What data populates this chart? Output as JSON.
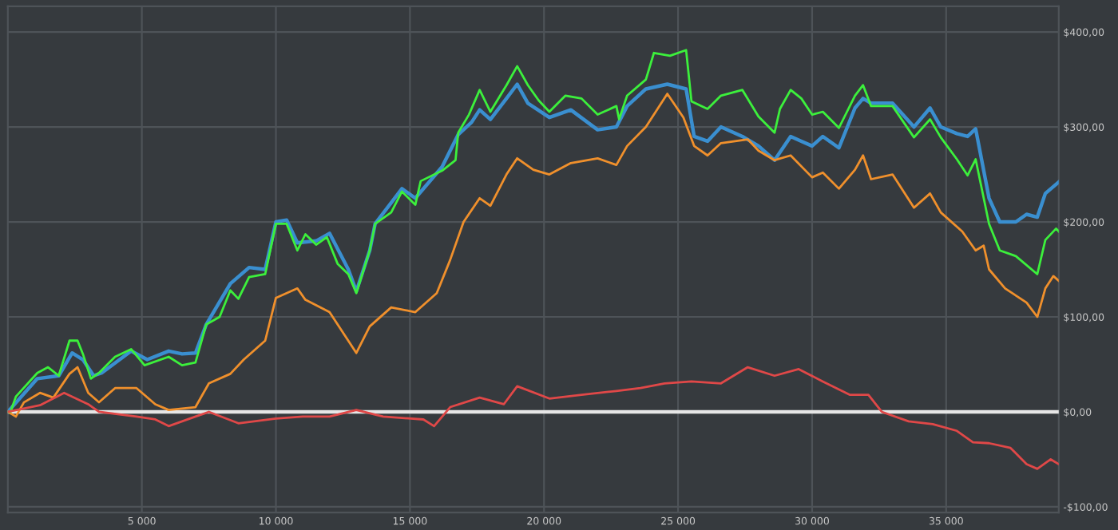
{
  "chart_data": {
    "type": "line",
    "xlim": [
      0,
      39200
    ],
    "ylim": [
      -106,
      427
    ],
    "xticks": [
      {
        "value": 5000,
        "label": "5 000"
      },
      {
        "value": 10000,
        "label": "10 000"
      },
      {
        "value": 15000,
        "label": "15 000"
      },
      {
        "value": 20000,
        "label": "20 000"
      },
      {
        "value": 25000,
        "label": "25 000"
      },
      {
        "value": 30000,
        "label": "30 000"
      },
      {
        "value": 35000,
        "label": "35 000"
      }
    ],
    "yticks": [
      {
        "value": -100,
        "label": "-$100,00"
      },
      {
        "value": 0,
        "label": "$0,00"
      },
      {
        "value": 100,
        "label": "$100,00"
      },
      {
        "value": 200,
        "label": "$200,00"
      },
      {
        "value": 300,
        "label": "$300,00"
      },
      {
        "value": 400,
        "label": "$400,00"
      }
    ],
    "grid": true,
    "marker": "none",
    "line_style": "solid",
    "ref_lines": [
      {
        "axis": "y",
        "value": 0,
        "label": null,
        "color": "#e6e6e6"
      }
    ],
    "series": [
      {
        "color": "#3a8fd0",
        "x": [
          0,
          1100,
          1900,
          2400,
          2800,
          3200,
          3500,
          4600,
          5200,
          6000,
          6500,
          7000,
          7400,
          8300,
          9000,
          9600,
          10000,
          10400,
          10800,
          11500,
          12000,
          12700,
          13000,
          13500,
          13700,
          14700,
          15200,
          16200,
          16800,
          17300,
          17600,
          18000,
          18600,
          19000,
          19400,
          20200,
          21000,
          22000,
          22700,
          23100,
          23800,
          24600,
          25300,
          25600,
          26100,
          26600,
          27400,
          28000,
          28600,
          29200,
          29600,
          30000,
          30400,
          31000,
          31600,
          31900,
          32200,
          33000,
          33800,
          34400,
          34800,
          35400,
          35800,
          36100,
          36600,
          37000,
          37600,
          38000,
          38400,
          38700,
          39200
        ],
        "values": [
          0,
          35,
          38,
          62,
          55,
          38,
          41,
          64,
          55,
          64,
          61,
          62,
          92,
          135,
          152,
          150,
          200,
          202,
          178,
          180,
          188,
          150,
          127,
          170,
          198,
          235,
          225,
          258,
          292,
          305,
          318,
          308,
          330,
          345,
          325,
          310,
          318,
          297,
          300,
          322,
          340,
          345,
          340,
          290,
          285,
          300,
          290,
          280,
          265,
          290,
          285,
          280,
          290,
          278,
          320,
          330,
          325,
          325,
          300,
          320,
          300,
          293,
          290,
          298,
          225,
          200,
          200,
          208,
          205,
          230,
          242
        ]
      },
      {
        "color": "#f0902c",
        "x": [
          0,
          300,
          600,
          1200,
          1700,
          2300,
          2600,
          3000,
          3400,
          4000,
          4800,
          5500,
          6000,
          7000,
          7500,
          8300,
          8800,
          9600,
          10000,
          10800,
          11100,
          12000,
          13000,
          13500,
          14300,
          15200,
          16000,
          16500,
          17000,
          17600,
          18000,
          18600,
          19000,
          19600,
          20200,
          21000,
          22000,
          22700,
          23100,
          23800,
          24600,
          25200,
          25600,
          26100,
          26600,
          27600,
          28000,
          28600,
          29200,
          30000,
          30400,
          31000,
          31600,
          31900,
          32200,
          33000,
          33800,
          34400,
          34800,
          35600,
          36100,
          36400,
          36600,
          37200,
          38000,
          38400,
          38700,
          39000,
          39200
        ],
        "values": [
          0,
          -5,
          10,
          20,
          15,
          40,
          47,
          20,
          10,
          25,
          25,
          8,
          2,
          5,
          30,
          40,
          55,
          75,
          120,
          130,
          118,
          105,
          62,
          90,
          110,
          105,
          125,
          160,
          200,
          225,
          217,
          250,
          267,
          255,
          250,
          262,
          267,
          260,
          280,
          300,
          335,
          310,
          280,
          270,
          283,
          287,
          275,
          265,
          270,
          247,
          252,
          235,
          255,
          270,
          245,
          250,
          215,
          230,
          210,
          190,
          170,
          175,
          150,
          130,
          115,
          100,
          130,
          143,
          138
        ]
      },
      {
        "color": "#3cf03c",
        "x": [
          0,
          100,
          300,
          1100,
          1500,
          1900,
          2300,
          2600,
          2800,
          3100,
          3400,
          4000,
          4600,
          5100,
          6000,
          6500,
          7000,
          7400,
          7900,
          8300,
          8600,
          9000,
          9600,
          10000,
          10400,
          10800,
          11100,
          11500,
          11900,
          12300,
          12700,
          13000,
          13500,
          13700,
          14300,
          14700,
          15200,
          15400,
          16200,
          16700,
          16800,
          17200,
          17600,
          18000,
          18600,
          19000,
          19400,
          19800,
          20200,
          20800,
          21400,
          22000,
          22700,
          22800,
          23100,
          23800,
          24100,
          24700,
          25300,
          25500,
          26100,
          26600,
          27400,
          28000,
          28600,
          28800,
          29200,
          29600,
          30000,
          30400,
          31000,
          31600,
          31900,
          32200,
          33000,
          33800,
          34400,
          34800,
          35400,
          35800,
          36100,
          36600,
          37000,
          37600,
          38400,
          38700,
          39100,
          39200
        ],
        "values": [
          0,
          0,
          16,
          41,
          47,
          38,
          75,
          75,
          61,
          35,
          41,
          58,
          66,
          49,
          58,
          49,
          52,
          92,
          100,
          128,
          119,
          142,
          145,
          198,
          198,
          170,
          187,
          176,
          184,
          156,
          145,
          125,
          170,
          198,
          210,
          232,
          218,
          243,
          254,
          265,
          294,
          313,
          339,
          316,
          344,
          364,
          344,
          328,
          316,
          333,
          330,
          313,
          322,
          308,
          333,
          350,
          378,
          375,
          381,
          327,
          319,
          333,
          339,
          311,
          294,
          319,
          339,
          330,
          313,
          316,
          299,
          333,
          344,
          322,
          322,
          289,
          308,
          289,
          266,
          249,
          266,
          198,
          170,
          164,
          145,
          181,
          193,
          190
        ]
      },
      {
        "color": "#e04848",
        "x": [
          0,
          1200,
          2100,
          3000,
          3400,
          4800,
          5500,
          6000,
          7000,
          7500,
          8600,
          10000,
          11000,
          12000,
          13000,
          14000,
          15500,
          15900,
          16500,
          17600,
          18500,
          19000,
          20200,
          21400,
          22700,
          23600,
          24500,
          25500,
          26600,
          27600,
          28600,
          29500,
          30400,
          31400,
          32100,
          32600,
          33600,
          34500,
          35400,
          36000,
          36600,
          37400,
          38000,
          38400,
          38900,
          39200
        ],
        "values": [
          0,
          7,
          20,
          8,
          0,
          -5,
          -8,
          -15,
          -5,
          0,
          -12,
          -7,
          -5,
          -5,
          2,
          -5,
          -8,
          -15,
          5,
          15,
          8,
          27,
          14,
          18,
          22,
          25,
          30,
          32,
          30,
          47,
          38,
          45,
          32,
          18,
          18,
          0,
          -10,
          -13,
          -20,
          -32,
          -33,
          -38,
          -55,
          -60,
          -50,
          -55
        ]
      }
    ]
  }
}
